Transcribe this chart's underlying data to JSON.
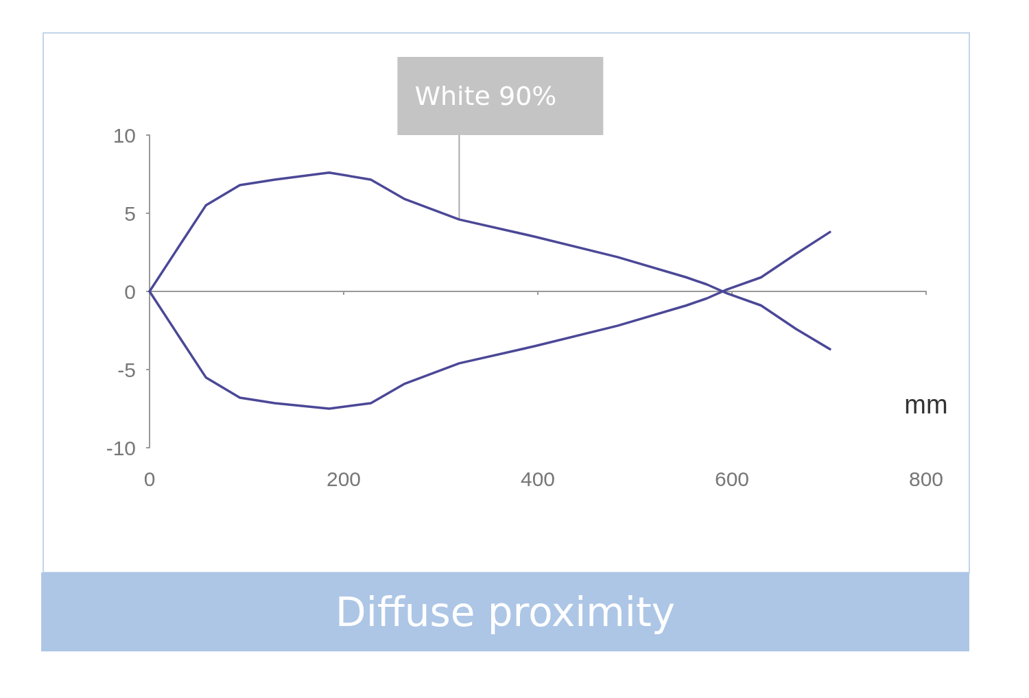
{
  "chart_data": {
    "type": "line",
    "title": "Diffuse proximity",
    "xlabel": "mm",
    "xlim": [
      0,
      800
    ],
    "xticks": [
      0,
      200,
      400,
      600,
      800
    ],
    "ylim": [
      -10,
      10
    ],
    "yticks": [
      -10,
      -5,
      0,
      5,
      10
    ],
    "marker": "none",
    "line_style": "solid",
    "annotations": [
      {
        "text": "White 90%",
        "x": 319,
        "y": 4.6
      }
    ],
    "series": [
      {
        "color": "#4b4897",
        "x": [
          0,
          30,
          58,
          93,
          129,
          185,
          228,
          263,
          319,
          397,
          482,
          553,
          574,
          595,
          630,
          666,
          701
        ],
        "values": [
          0,
          2.85,
          5.5,
          6.8,
          7.15,
          7.6,
          7.15,
          5.9,
          4.6,
          3.5,
          2.2,
          0.9,
          0.45,
          -0.13,
          -0.9,
          -2.4,
          -3.7
        ]
      },
      {
        "color": "#4b4897",
        "x": [
          0,
          30,
          58,
          93,
          129,
          185,
          228,
          263,
          319,
          397,
          482,
          553,
          574,
          595,
          630,
          666,
          701
        ],
        "values": [
          0,
          -2.85,
          -5.5,
          -6.8,
          -7.15,
          -7.5,
          -7.15,
          -5.9,
          -4.6,
          -3.5,
          -2.2,
          -0.9,
          -0.45,
          0.13,
          0.9,
          2.4,
          3.8
        ]
      }
    ]
  }
}
